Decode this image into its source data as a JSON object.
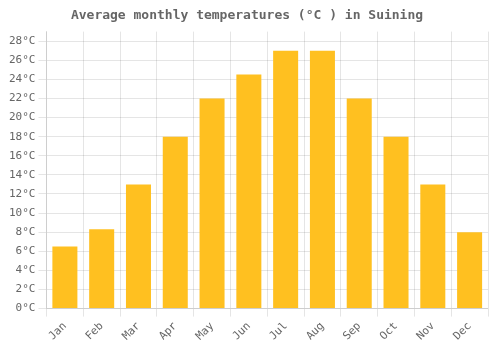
{
  "chart_data": {
    "type": "bar",
    "title": "Average monthly temperatures (°C ) in Suining",
    "categories": [
      "Jan",
      "Feb",
      "Mar",
      "Apr",
      "May",
      "Jun",
      "Jul",
      "Aug",
      "Sep",
      "Oct",
      "Nov",
      "Dec"
    ],
    "values": [
      6.5,
      8.3,
      13.0,
      18.0,
      22.0,
      24.5,
      27.0,
      27.0,
      22.0,
      18.0,
      13.0,
      8.0
    ],
    "color": "#FFC020",
    "ylim": [
      0,
      29
    ],
    "yticks": [
      {
        "value": 0,
        "label": "0°C"
      },
      {
        "value": 2,
        "label": "2°C"
      },
      {
        "value": 4,
        "label": "4°C"
      },
      {
        "value": 6,
        "label": "6°C"
      },
      {
        "value": 8,
        "label": "8°C"
      },
      {
        "value": 10,
        "label": "10°C"
      },
      {
        "value": 12,
        "label": "12°C"
      },
      {
        "value": 14,
        "label": "14°C"
      },
      {
        "value": 16,
        "label": "16°C"
      },
      {
        "value": 18,
        "label": "18°C"
      },
      {
        "value": 20,
        "label": "20°C"
      },
      {
        "value": 22,
        "label": "22°C"
      },
      {
        "value": 24,
        "label": "24°C"
      },
      {
        "value": 26,
        "label": "26°C"
      },
      {
        "value": 28,
        "label": "28°C"
      }
    ],
    "grid": true
  }
}
